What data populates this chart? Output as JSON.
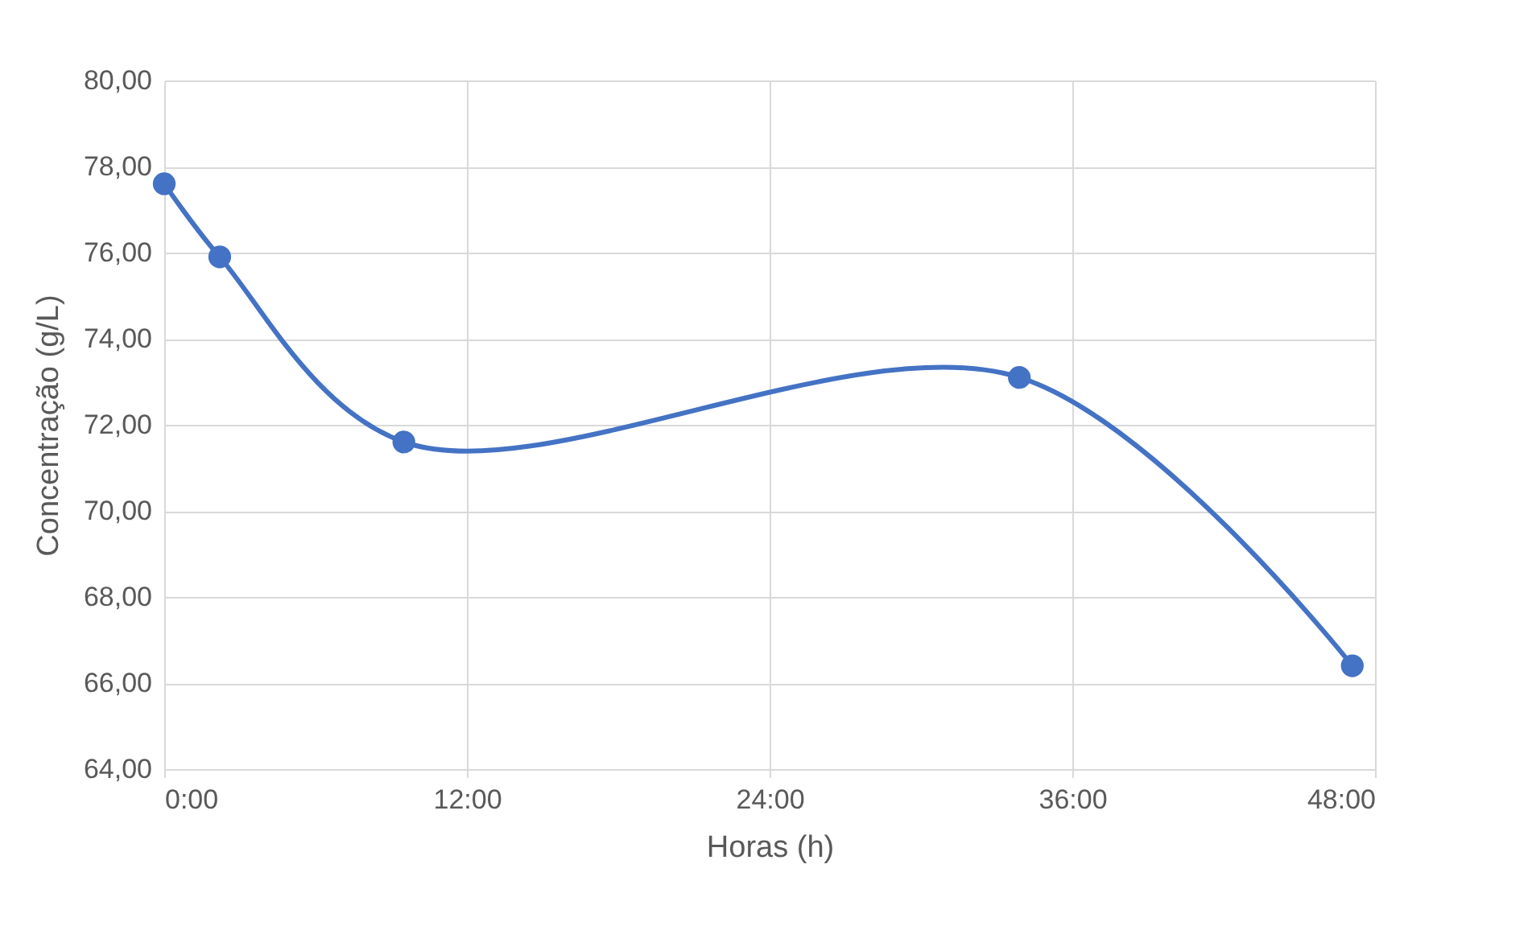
{
  "chart_data": {
    "type": "line",
    "xlabel": "Horas (h)",
    "ylabel": "Concentração (g/L)",
    "x": [
      0,
      2.2,
      9.5,
      33.9,
      47.1
    ],
    "series": [
      {
        "color": "#4472c4",
        "values": [
          77.6,
          75.9,
          71.6,
          73.1,
          66.4
        ]
      }
    ],
    "xlim": [
      0,
      48
    ],
    "xticks": [
      {
        "value": 0,
        "label": "0:00"
      },
      {
        "value": 12,
        "label": "12:00"
      },
      {
        "value": 24,
        "label": "24:00"
      },
      {
        "value": 36,
        "label": "36:00"
      },
      {
        "value": 48,
        "label": "48:00"
      }
    ],
    "ylim": [
      64,
      80
    ],
    "yticks": [
      {
        "value": 64,
        "label": "64,00"
      },
      {
        "value": 66,
        "label": "66,00"
      },
      {
        "value": 68,
        "label": "68,00"
      },
      {
        "value": 70,
        "label": "70,00"
      },
      {
        "value": 72,
        "label": "72,00"
      },
      {
        "value": 74,
        "label": "74,00"
      },
      {
        "value": 76,
        "label": "76,00"
      },
      {
        "value": 78,
        "label": "78,00"
      },
      {
        "value": 80,
        "label": "80,00"
      }
    ],
    "grid": true,
    "marker": "circle",
    "line_style": "solid"
  }
}
